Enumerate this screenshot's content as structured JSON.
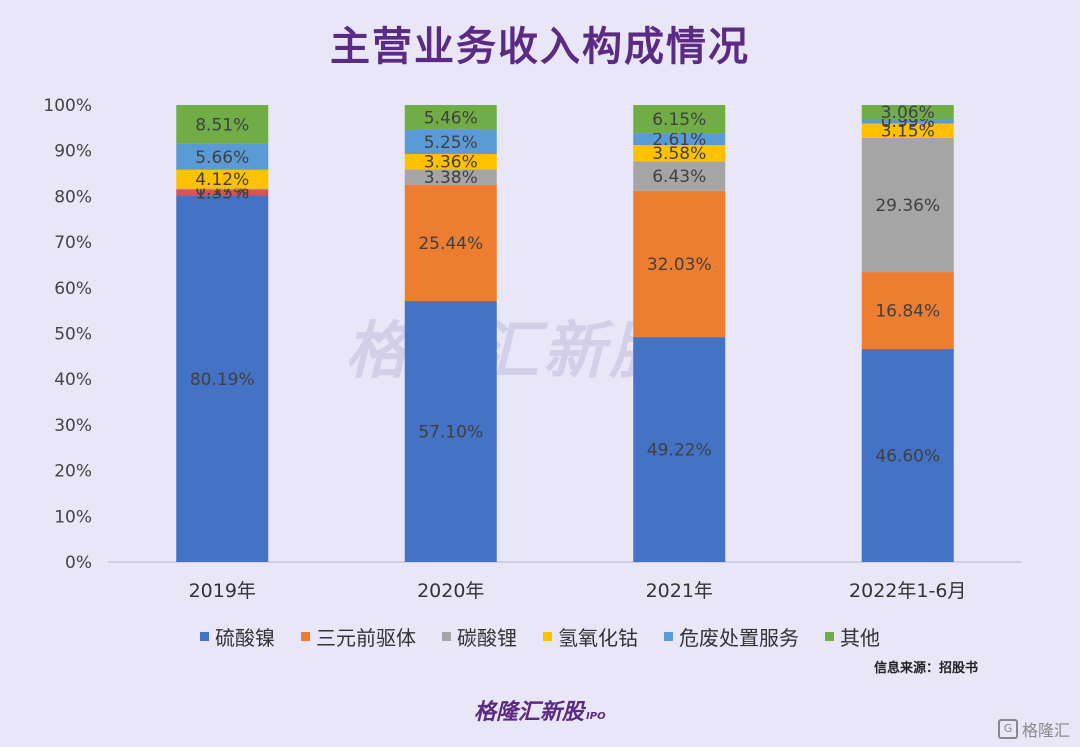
{
  "title": "主营业务收入构成情况",
  "source_note": "信息来源：招股书",
  "brand_text": "格隆汇新股",
  "brand_sub": "IPO",
  "watermark_text": "格隆汇新股",
  "corner_logo_mark": "G",
  "corner_logo_text": "格隆汇",
  "chart_data": {
    "type": "bar",
    "stacked": true,
    "categories": [
      "2019年",
      "2020年",
      "2021年",
      "2022年1-6月"
    ],
    "y_ticks": [
      "0%",
      "10%",
      "20%",
      "30%",
      "40%",
      "50%",
      "60%",
      "70%",
      "80%",
      "90%",
      "100%"
    ],
    "ylim": [
      0,
      100
    ],
    "legend_position": "bottom",
    "series": [
      {
        "name": "硫酸镍",
        "color": "#4472c4",
        "values": [
          80.19,
          57.1,
          49.22,
          46.6
        ],
        "labels": [
          "80.19%",
          "57.10%",
          "49.22%",
          "46.60%"
        ]
      },
      {
        "name": "三元前驱体",
        "color": "#ed7d31",
        "values": [
          0.0,
          25.44,
          32.03,
          16.84
        ],
        "labels": [
          "",
          "25.44%",
          "32.03%",
          "16.84%"
        ]
      },
      {
        "name": "碳酸锂",
        "color": "#a5a5a5",
        "values": [
          0.17,
          3.38,
          6.43,
          29.36
        ],
        "labels": [
          "0.17%",
          "3.38%",
          "6.43%",
          "29.36%"
        ]
      },
      {
        "name": "氢氧化钴",
        "color": "#ffc000",
        "values": [
          4.12,
          3.36,
          3.58,
          3.15
        ],
        "labels": [
          "4.12%",
          "3.36%",
          "3.58%",
          "3.15%"
        ]
      },
      {
        "name": "危废处置服务",
        "color": "#5b9bd5",
        "values": [
          5.66,
          5.25,
          2.61,
          0.99
        ],
        "labels": [
          "5.66%",
          "5.25%",
          "2.61%",
          "0.99%"
        ]
      },
      {
        "name": "其他",
        "color": "#70ad47",
        "values": [
          8.51,
          5.46,
          6.15,
          3.06
        ],
        "labels": [
          "8.51%",
          "5.46%",
          "6.15%",
          "3.06%"
        ]
      }
    ],
    "extra_segment": {
      "category_index": 0,
      "color": "#e05050",
      "value": 1.35,
      "label": "1.35%",
      "after_series_index": 0
    }
  }
}
